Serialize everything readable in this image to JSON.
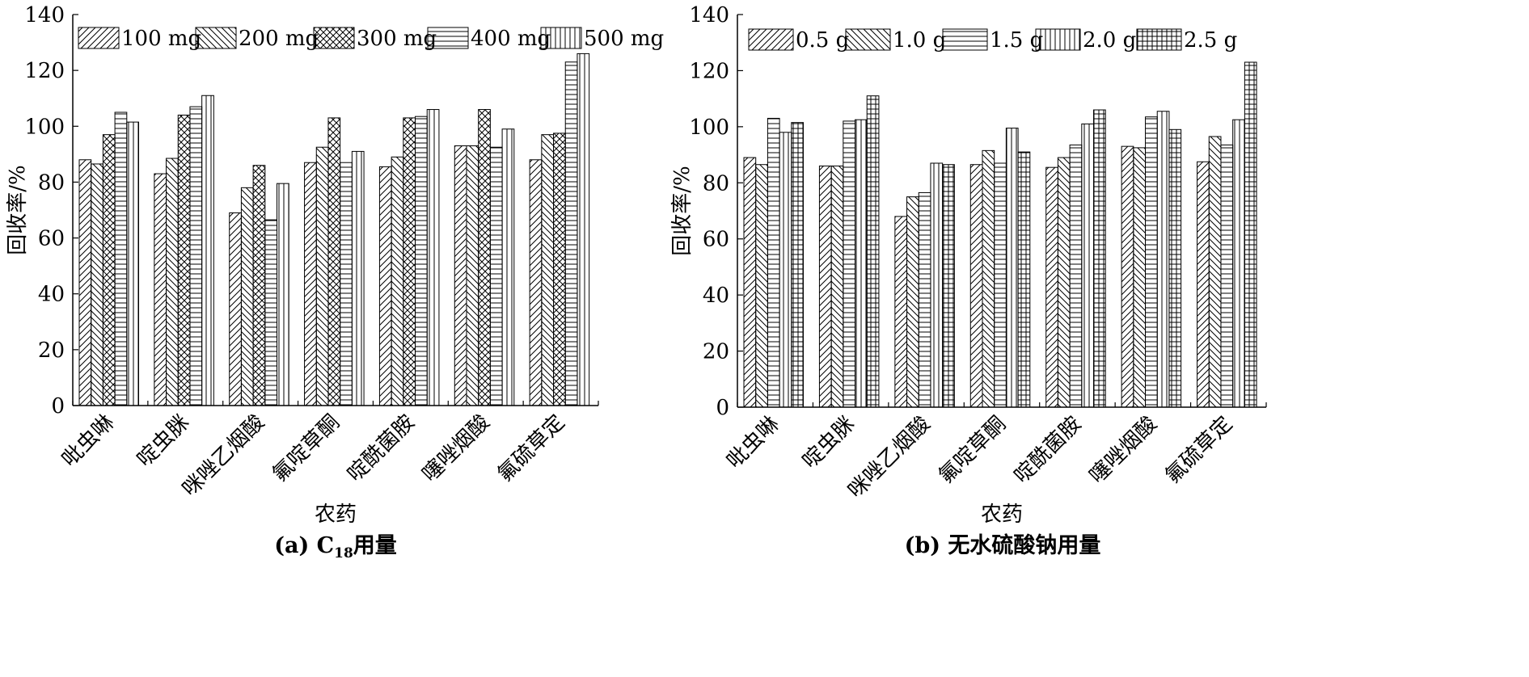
{
  "chart_data": [
    {
      "type": "bar",
      "caption": "(a) C",
      "caption_sub": "18",
      "caption_suffix": "用量",
      "xlabel": "农药",
      "ylabel": "回收率/%",
      "ylim": [
        0,
        140
      ],
      "yticks": [
        0,
        20,
        40,
        60,
        80,
        100,
        120,
        140
      ],
      "legend_position": "top",
      "categories": [
        "吡虫啉",
        "啶虫脒",
        "咪唑乙烟酸",
        "氟啶草酮",
        "啶酰菌胺",
        "噻唑烟酸",
        "氟硫草定"
      ],
      "series": [
        {
          "name": "100 mg",
          "pattern": "diag-up",
          "values": [
            88,
            83,
            69,
            87,
            85.5,
            93,
            88
          ]
        },
        {
          "name": "200 mg",
          "pattern": "diag-down",
          "values": [
            86.5,
            88.5,
            78,
            92.5,
            89,
            93,
            97
          ]
        },
        {
          "name": "300 mg",
          "pattern": "crosshatch",
          "values": [
            97,
            104,
            86,
            103,
            103,
            106,
            97.5
          ]
        },
        {
          "name": "400 mg",
          "pattern": "horizontal",
          "values": [
            105,
            107,
            66.5,
            87,
            103.5,
            92.5,
            123
          ]
        },
        {
          "name": "500 mg",
          "pattern": "vertical",
          "values": [
            101.5,
            111,
            79.5,
            91,
            106,
            99,
            126
          ]
        }
      ]
    },
    {
      "type": "bar",
      "caption": "(b) 无水硫酸钠用量",
      "xlabel": "农药",
      "ylabel": "回收率/%",
      "ylim": [
        0,
        140
      ],
      "yticks": [
        0,
        20,
        40,
        60,
        80,
        100,
        120,
        140
      ],
      "legend_position": "top",
      "categories": [
        "吡虫啉",
        "啶虫脒",
        "咪唑乙烟酸",
        "氟啶草酮",
        "啶酰菌胺",
        "噻唑烟酸",
        "氟硫草定"
      ],
      "series": [
        {
          "name": "0.5 g",
          "pattern": "diag-up",
          "values": [
            89,
            86,
            68,
            86.5,
            85.5,
            93,
            87.5
          ]
        },
        {
          "name": "1.0 g",
          "pattern": "diag-down",
          "values": [
            86.5,
            86,
            75,
            91.5,
            89,
            92.5,
            96.5
          ]
        },
        {
          "name": "1.5 g",
          "pattern": "horizontal",
          "values": [
            103,
            102,
            76.5,
            87,
            93.5,
            103.5,
            93.5
          ]
        },
        {
          "name": "2.0 g",
          "pattern": "vertical",
          "values": [
            98,
            102.5,
            87,
            99.5,
            101,
            105.5,
            102.5
          ]
        },
        {
          "name": "2.5 g",
          "pattern": "grid",
          "values": [
            101.5,
            111,
            86.5,
            91,
            106,
            99,
            123
          ]
        }
      ]
    }
  ]
}
